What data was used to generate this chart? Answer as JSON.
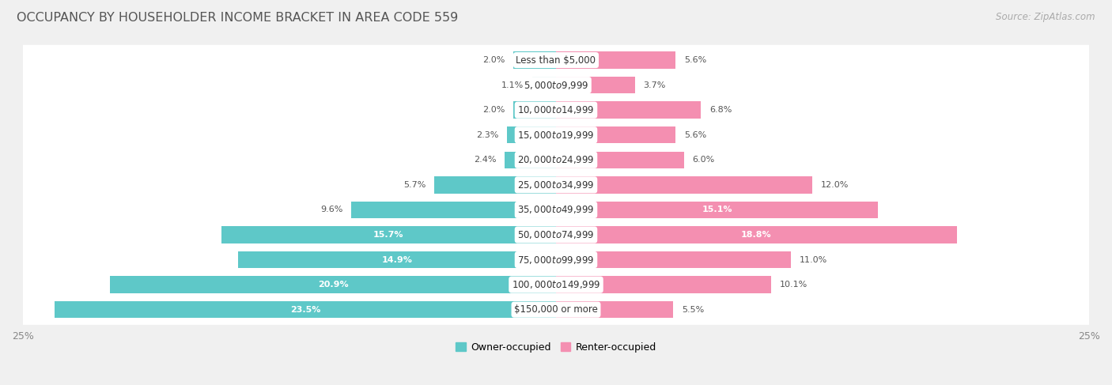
{
  "title": "OCCUPANCY BY HOUSEHOLDER INCOME BRACKET IN AREA CODE 559",
  "source": "Source: ZipAtlas.com",
  "categories": [
    "Less than $5,000",
    "$5,000 to $9,999",
    "$10,000 to $14,999",
    "$15,000 to $19,999",
    "$20,000 to $24,999",
    "$25,000 to $34,999",
    "$35,000 to $49,999",
    "$50,000 to $74,999",
    "$75,000 to $99,999",
    "$100,000 to $149,999",
    "$150,000 or more"
  ],
  "owner_values": [
    2.0,
    1.1,
    2.0,
    2.3,
    2.4,
    5.7,
    9.6,
    15.7,
    14.9,
    20.9,
    23.5
  ],
  "renter_values": [
    5.6,
    3.7,
    6.8,
    5.6,
    6.0,
    12.0,
    15.1,
    18.8,
    11.0,
    10.1,
    5.5
  ],
  "owner_color": "#5ec8c8",
  "renter_color": "#f48fb1",
  "background_color": "#f0f0f0",
  "bar_background": "#ffffff",
  "xlim": 25.0,
  "owner_label": "Owner-occupied",
  "renter_label": "Renter-occupied",
  "title_fontsize": 11.5,
  "source_fontsize": 8.5,
  "label_fontsize": 8.5,
  "value_fontsize": 8,
  "axis_label_fontsize": 9,
  "bar_height": 0.68,
  "owner_inside_threshold": 10.0,
  "renter_inside_threshold": 14.0
}
